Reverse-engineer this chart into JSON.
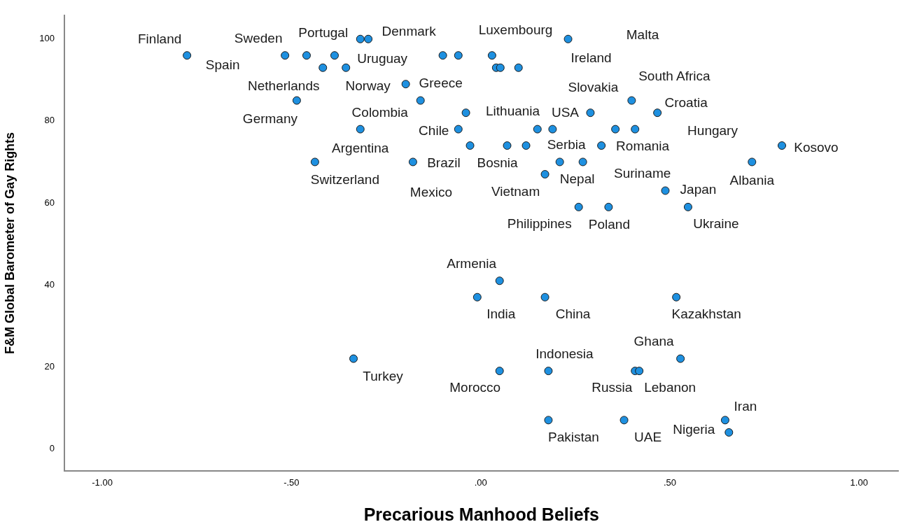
{
  "chart_data": {
    "type": "scatter",
    "xlabel": "Precarious Manhood Beliefs",
    "ylabel": "F&M Global Barometer of Gay Rights",
    "xlim": [
      -1.1,
      1.104
    ],
    "ylim": [
      -5.4,
      105.8
    ],
    "xticks": [
      {
        "value": -1,
        "label": "-1.00"
      },
      {
        "value": -0.5,
        "label": "-.50"
      },
      {
        "value": 0,
        "label": ".00"
      },
      {
        "value": 0.5,
        "label": ".50"
      },
      {
        "value": 1,
        "label": "1.00"
      }
    ],
    "yticks": [
      0,
      20,
      40,
      60,
      80,
      100
    ],
    "grid": false,
    "legend": false,
    "marker": "circle",
    "series": [
      {
        "color": "#1e90e0",
        "x": [
          -0.776,
          -0.517,
          -0.318,
          -0.297,
          -0.46,
          -0.386,
          -0.417,
          -0.356,
          -0.486,
          -0.198,
          -0.159,
          -0.039,
          -0.318,
          -0.059,
          -0.438,
          -0.179,
          -0.028,
          0.07,
          0.12,
          -0.1,
          -0.059,
          0.03,
          0.041,
          0.052,
          0.1,
          0.231,
          0.15,
          0.19,
          0.29,
          0.356,
          0.408,
          0.399,
          0.467,
          0.319,
          0.209,
          0.27,
          0.17,
          0.796,
          0.717,
          0.488,
          0.259,
          0.338,
          0.548,
          0.05,
          -0.009,
          0.17,
          0.517,
          -0.336,
          0.05,
          0.179,
          0.408,
          0.419,
          0.528,
          0.179,
          0.379,
          0.646,
          0.656
        ],
        "values": [
          96,
          96,
          100,
          100,
          96,
          96,
          93,
          93,
          85,
          89,
          85,
          82,
          78,
          78,
          70,
          70,
          74,
          74,
          74,
          96,
          96,
          96,
          93,
          93,
          93,
          100,
          78,
          78,
          82,
          78,
          78,
          85,
          82,
          74,
          70,
          70,
          67,
          74,
          70,
          63,
          59,
          59,
          59,
          41,
          37,
          37,
          37,
          22,
          19,
          19,
          19,
          19,
          22,
          7,
          7,
          7,
          4
        ]
      }
    ],
    "annotations": [
      {
        "text": "Finland",
        "x": -0.776,
        "y": 96
      },
      {
        "text": "Spain",
        "x": -0.776,
        "y": 96
      },
      {
        "text": "Sweden",
        "x": -0.517,
        "y": 96
      },
      {
        "text": "Portugal",
        "x": -0.318,
        "y": 100
      },
      {
        "text": "Denmark",
        "x": -0.297,
        "y": 100
      },
      {
        "text": "Uruguay",
        "x": -0.356,
        "y": 93
      },
      {
        "text": "Netherlands",
        "x": -0.417,
        "y": 93
      },
      {
        "text": "Norway",
        "x": -0.198,
        "y": 89
      },
      {
        "text": "Greece",
        "x": -0.198,
        "y": 89
      },
      {
        "text": "Germany",
        "x": -0.486,
        "y": 85
      },
      {
        "text": "Colombia",
        "x": -0.159,
        "y": 85
      },
      {
        "text": "Argentina",
        "x": -0.318,
        "y": 78
      },
      {
        "text": "Switzerland",
        "x": -0.438,
        "y": 70
      },
      {
        "text": "Chile",
        "x": -0.059,
        "y": 78
      },
      {
        "text": "Brazil",
        "x": -0.179,
        "y": 70
      },
      {
        "text": "Mexico",
        "x": -0.179,
        "y": 70
      },
      {
        "text": "Bosnia",
        "x": -0.028,
        "y": 74
      },
      {
        "text": "Lithuania",
        "x": -0.039,
        "y": 82
      },
      {
        "text": "USA",
        "x": 0.29,
        "y": 82
      },
      {
        "text": "Luxembourg",
        "x": 0.231,
        "y": 100
      },
      "Malta",
      {
        "text": "Ireland",
        "x": 0.231,
        "y": 100
      },
      {
        "text": "Slovakia",
        "x": 0.399,
        "y": 85
      },
      {
        "text": "South Africa",
        "x": 0.399,
        "y": 85
      },
      {
        "text": "Croatia",
        "x": 0.467,
        "y": 82
      },
      "Hungary",
      {
        "text": "Serbia",
        "x": 0.319,
        "y": 74
      },
      {
        "text": "Romania",
        "x": 0.319,
        "y": 74
      },
      {
        "text": "Kosovo",
        "x": 0.796,
        "y": 74
      },
      {
        "text": "Albania",
        "x": 0.717,
        "y": 70
      },
      {
        "text": "Nepal",
        "x": 0.209,
        "y": 70
      },
      {
        "text": "Suriname",
        "x": 0.27,
        "y": 70
      },
      {
        "text": "Vietnam",
        "x": 0.17,
        "y": 67
      },
      {
        "text": "Japan",
        "x": 0.488,
        "y": 63
      },
      {
        "text": "Philippines",
        "x": 0.259,
        "y": 59
      },
      {
        "text": "Poland",
        "x": 0.338,
        "y": 59
      },
      {
        "text": "Ukraine",
        "x": 0.548,
        "y": 59
      },
      {
        "text": "Armenia",
        "x": 0.05,
        "y": 41
      },
      {
        "text": "India",
        "x": -0.009,
        "y": 37
      },
      {
        "text": "China",
        "x": 0.17,
        "y": 37
      },
      {
        "text": "Kazakhstan",
        "x": 0.517,
        "y": 37
      },
      {
        "text": "Turkey",
        "x": -0.336,
        "y": 22
      },
      {
        "text": "Morocco",
        "x": 0.05,
        "y": 19
      },
      {
        "text": "Indonesia",
        "x": 0.179,
        "y": 19
      },
      {
        "text": "Ghana",
        "x": 0.528,
        "y": 22
      },
      {
        "text": "Russia",
        "x": 0.408,
        "y": 19
      },
      {
        "text": "Lebanon",
        "x": 0.419,
        "y": 19
      },
      {
        "text": "Iran",
        "x": 0.646,
        "y": 7
      },
      {
        "text": "Nigeria",
        "x": 0.656,
        "y": 4
      },
      {
        "text": "Pakistan",
        "x": 0.179,
        "y": 7
      },
      {
        "text": "UAE",
        "x": 0.379,
        "y": 7
      }
    ]
  }
}
